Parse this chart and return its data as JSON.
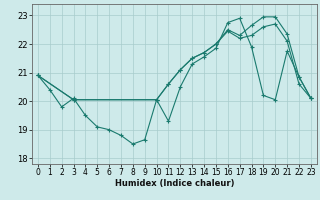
{
  "xlabel": "Humidex (Indice chaleur)",
  "ylabel": "",
  "xlim": [
    -0.5,
    23.5
  ],
  "ylim": [
    17.8,
    23.4
  ],
  "yticks": [
    18,
    19,
    20,
    21,
    22,
    23
  ],
  "xticks": [
    0,
    1,
    2,
    3,
    4,
    5,
    6,
    7,
    8,
    9,
    10,
    11,
    12,
    13,
    14,
    15,
    16,
    17,
    18,
    19,
    20,
    21,
    22,
    23
  ],
  "bg_color": "#ceeaea",
  "grid_color": "#a8cccc",
  "line_color": "#1a7a6e",
  "lines": [
    {
      "x": [
        0,
        1,
        2,
        3,
        4,
        5,
        6,
        7,
        8,
        9,
        10,
        11,
        12,
        13,
        14,
        15,
        16,
        17,
        18,
        19,
        20,
        21,
        22,
        23
      ],
      "y": [
        20.9,
        20.4,
        19.8,
        20.1,
        19.5,
        19.1,
        19.0,
        18.8,
        18.5,
        18.65,
        20.05,
        19.3,
        20.5,
        21.3,
        21.55,
        21.85,
        22.75,
        22.9,
        21.9,
        20.2,
        20.05,
        21.75,
        20.85,
        20.1
      ]
    },
    {
      "x": [
        0,
        3,
        10,
        11,
        12,
        13,
        14,
        15,
        16,
        17,
        18,
        19,
        20,
        21,
        22,
        23
      ],
      "y": [
        20.9,
        20.05,
        20.05,
        20.6,
        21.1,
        21.5,
        21.7,
        22.0,
        22.5,
        22.3,
        22.65,
        22.95,
        22.95,
        22.35,
        20.85,
        20.1
      ]
    },
    {
      "x": [
        0,
        3,
        10,
        11,
        12,
        13,
        14,
        15,
        16,
        17,
        18,
        19,
        20,
        21,
        22,
        23
      ],
      "y": [
        20.9,
        20.05,
        20.05,
        20.6,
        21.1,
        21.5,
        21.7,
        22.0,
        22.45,
        22.2,
        22.3,
        22.6,
        22.7,
        22.1,
        20.6,
        20.1
      ]
    }
  ]
}
